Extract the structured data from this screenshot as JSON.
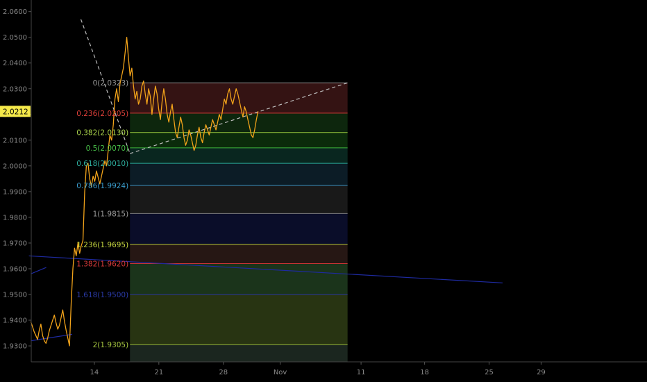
{
  "chart_data": {
    "type": "line",
    "title": "",
    "current_price": "2.0212",
    "y_ticks": [
      "1.9300",
      "1.9400",
      "1.9500",
      "1.9600",
      "1.9700",
      "1.9800",
      "1.9900",
      "2.0000",
      "2.0100",
      "2.0200",
      "2.0300",
      "2.0400",
      "2.0500",
      "2.0600"
    ],
    "ylim": [
      1.9238,
      2.0645
    ],
    "x_ticks": [
      "14",
      "21",
      "28",
      "Nov",
      "11",
      "18",
      "25",
      "29"
    ],
    "fib_levels": [
      {
        "ratio": "0",
        "price": 2.0323,
        "label": "0(2.0323)",
        "text_color": "#9a9a9a",
        "line_color": "#8a8a8a",
        "fill": "#3a1515"
      },
      {
        "ratio": "0.236",
        "price": 2.0205,
        "label": "0.236(2.0205)",
        "text_color": "#e0403a",
        "line_color": "#d83a34",
        "fill": "#0e2a0e"
      },
      {
        "ratio": "0.382",
        "price": 2.013,
        "label": "0.382(2.0130)",
        "text_color": "#a8d24a",
        "line_color": "#9ccc3e",
        "fill": "#0c300c"
      },
      {
        "ratio": "0.5",
        "price": 2.007,
        "label": "0.5(2.0070)",
        "text_color": "#4ac24a",
        "line_color": "#3fb83f",
        "fill": "#0a2a22"
      },
      {
        "ratio": "0.618",
        "price": 2.001,
        "label": "0.618(2.0010)",
        "text_color": "#2eb0a0",
        "line_color": "#2aa898",
        "fill": "#0d1f2a"
      },
      {
        "ratio": "0.786",
        "price": 1.9924,
        "label": "0.786(1.9924)",
        "text_color": "#3a9ccc",
        "line_color": "#3a8fbf",
        "fill": "#1c1c1c"
      },
      {
        "ratio": "1",
        "price": 1.9815,
        "label": "1(1.9815)",
        "text_color": "#9a9a9a",
        "line_color": "#7a7a7a",
        "fill": "#0b0e2e"
      },
      {
        "ratio": "1.236",
        "price": 1.9695,
        "label": "1.236(1.9695)",
        "text_color": "#c8d840",
        "line_color": "#b8c838",
        "fill": "#2a1a16"
      },
      {
        "ratio": "1.382",
        "price": 1.962,
        "label": "1.382(1.9620)",
        "text_color": "#d83a3a",
        "line_color": "#c83434",
        "fill": "#1e3a1e"
      },
      {
        "ratio": "1.618",
        "price": 1.95,
        "label": "1.618(1.9500)",
        "text_color": "#2a3aa8",
        "line_color": "#2a36a0",
        "fill": "#2c3a14"
      },
      {
        "ratio": "2",
        "price": 1.9305,
        "label": "2(1.9305)",
        "text_color": "#a8c840",
        "line_color": "#98b838",
        "fill": "#1e2a22"
      }
    ],
    "price_series": {
      "name": "",
      "color": "#f2a31a",
      "x_start": 0,
      "x_end": 23.6,
      "values": [
        1.9395,
        1.9375,
        1.9355,
        1.934,
        1.9325,
        1.936,
        1.9385,
        1.934,
        1.932,
        1.931,
        1.933,
        1.936,
        1.938,
        1.94,
        1.942,
        1.939,
        1.9365,
        1.938,
        1.941,
        1.944,
        1.9395,
        1.936,
        1.933,
        1.93,
        1.947,
        1.96,
        1.968,
        1.965,
        1.97,
        1.966,
        1.969,
        1.971,
        1.99,
        2.0,
        2.001,
        1.995,
        1.992,
        1.996,
        1.994,
        1.998,
        1.9955,
        1.993,
        1.996,
        1.999,
        2.002,
        2.0,
        2.006,
        2.012,
        2.01,
        2.016,
        2.026,
        2.03,
        2.025,
        2.032,
        2.035,
        2.038,
        2.044,
        2.05,
        2.042,
        2.035,
        2.038,
        2.031,
        2.026,
        2.029,
        2.024,
        2.026,
        2.031,
        2.033,
        2.028,
        2.024,
        2.03,
        2.027,
        2.02,
        2.026,
        2.031,
        2.028,
        2.022,
        2.018,
        2.025,
        2.03,
        2.026,
        2.02,
        2.017,
        2.021,
        2.024,
        2.018,
        2.013,
        2.011,
        2.015,
        2.019,
        2.016,
        2.011,
        2.008,
        2.01,
        2.014,
        2.012,
        2.009,
        2.006,
        2.008,
        2.012,
        2.015,
        2.011,
        2.009,
        2.013,
        2.016,
        2.014,
        2.012,
        2.015,
        2.018,
        2.016,
        2.014,
        2.017,
        2.02,
        2.018,
        2.022,
        2.026,
        2.024,
        2.028,
        2.03,
        2.026,
        2.024,
        2.027,
        2.03,
        2.028,
        2.025,
        2.022,
        2.019,
        2.023,
        2.021,
        2.018,
        2.015,
        2.012,
        2.011,
        2.014,
        2.018,
        2.0212
      ]
    },
    "trendlines": [
      {
        "from": [
          -0.2,
          1.965
        ],
        "to": [
          49,
          1.9545
        ],
        "color": "#1e2aa0",
        "dashed": false
      },
      {
        "from": [
          0,
          1.932
        ],
        "to": [
          4.3,
          1.9345
        ],
        "color": "#1e2aa0",
        "dashed": false
      },
      {
        "from": [
          0,
          1.958
        ],
        "to": [
          1.6,
          1.9605
        ],
        "color": "#1e2aa0",
        "dashed": false
      },
      {
        "from": [
          5.2,
          2.057
        ],
        "to": [
          10.3,
          2.0048
        ],
        "color": "#bdbdbd",
        "dashed": true
      },
      {
        "from": [
          10.3,
          2.0048
        ],
        "to": [
          32.9,
          2.0323
        ],
        "color": "#bdbdbd",
        "dashed": true
      }
    ],
    "fib_box": {
      "x_from": 10.3,
      "x_to": 32.9
    },
    "x_tick_positions": [
      6.6,
      13.3,
      20.0,
      25.9,
      34.3,
      40.9,
      47.6,
      53.0
    ],
    "xlim": [
      -3.2,
      64
    ],
    "grid": false
  }
}
